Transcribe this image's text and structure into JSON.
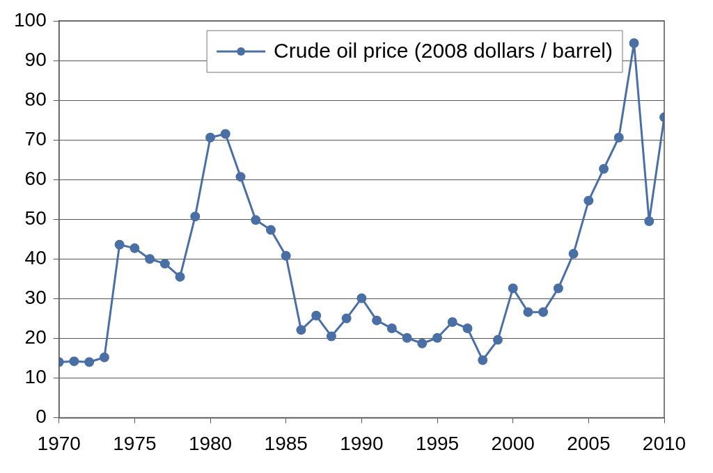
{
  "chart_data": {
    "type": "line",
    "x": [
      1970,
      1971,
      1972,
      1973,
      1974,
      1975,
      1976,
      1977,
      1978,
      1979,
      1980,
      1981,
      1982,
      1983,
      1984,
      1985,
      1986,
      1987,
      1988,
      1989,
      1990,
      1991,
      1992,
      1993,
      1994,
      1995,
      1996,
      1997,
      1998,
      1999,
      2000,
      2001,
      2002,
      2003,
      2004,
      2005,
      2006,
      2007,
      2008,
      2009,
      2010
    ],
    "series": [
      {
        "name": "Crude oil price (2008 dollars / barrel)",
        "color": "#4a6fa5",
        "values": [
          14,
          14.2,
          14,
          15.2,
          43.6,
          42.7,
          40,
          38.8,
          35.5,
          50.7,
          70.6,
          71.5,
          60.7,
          49.8,
          47.3,
          40.8,
          22.1,
          25.7,
          20.5,
          25,
          30.1,
          24.5,
          22.5,
          20.1,
          18.7,
          20.1,
          24.1,
          22.5,
          14.5,
          19.6,
          32.6,
          26.6,
          26.6,
          32.6,
          41.3,
          54.7,
          62.7,
          70.6,
          94.4,
          49.5,
          75.7
        ]
      }
    ],
    "xlim": [
      1970,
      2010
    ],
    "xticks": [
      1970,
      1975,
      1980,
      1985,
      1990,
      1995,
      2000,
      2005,
      2010
    ],
    "ylim": [
      0,
      100
    ],
    "yticks": [
      0,
      10,
      20,
      30,
      40,
      50,
      60,
      70,
      80,
      90,
      100
    ],
    "grid": "y",
    "legend": "top right",
    "marker": "circle",
    "line_style": "solid"
  }
}
